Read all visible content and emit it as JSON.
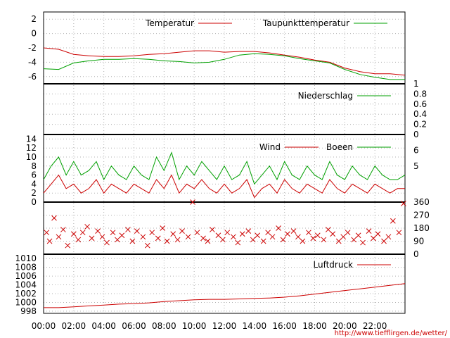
{
  "source_url": "http://www.tiefflirgen.de/wetter/",
  "x_ticks": [
    "00:00",
    "02:00",
    "04:00",
    "06:00",
    "08:00",
    "10:00",
    "12:00",
    "14:00",
    "16:00",
    "18:00",
    "20:00",
    "22:00"
  ],
  "colors": {
    "red": "#cc0000",
    "green": "#00a000"
  },
  "chart_data": [
    {
      "type": "line",
      "panel": "temperature",
      "y_ticks": [
        "2",
        "0",
        "-2",
        "-4",
        "-6"
      ],
      "ylim": [
        -7,
        3
      ],
      "x": [
        0,
        1,
        2,
        3,
        4,
        5,
        6,
        7,
        8,
        9,
        10,
        11,
        12,
        13,
        14,
        15,
        16,
        17,
        18,
        19,
        20,
        21,
        22,
        23,
        24
      ],
      "series": [
        {
          "name": "Temperatur",
          "color": "#cc0000",
          "values": [
            -2.0,
            -2.2,
            -2.9,
            -3.1,
            -3.2,
            -3.2,
            -3.1,
            -2.9,
            -2.8,
            -2.6,
            -2.4,
            -2.4,
            -2.6,
            -2.5,
            -2.5,
            -2.7,
            -3.0,
            -3.3,
            -3.7,
            -4.0,
            -4.8,
            -5.3,
            -5.6,
            -5.6,
            -5.8
          ]
        },
        {
          "name": "Taupunkttemperatur",
          "color": "#00a000",
          "values": [
            -4.9,
            -5.0,
            -4.1,
            -3.8,
            -3.6,
            -3.6,
            -3.5,
            -3.6,
            -3.8,
            -3.9,
            -4.1,
            -4.0,
            -3.6,
            -3.0,
            -2.8,
            -2.9,
            -3.1,
            -3.5,
            -3.8,
            -4.1,
            -5.0,
            -5.7,
            -6.1,
            -6.4,
            -6.4
          ]
        }
      ]
    },
    {
      "type": "line",
      "panel": "precipitation",
      "y_ticks": [
        "1",
        "0.8",
        "0.6",
        "0.4",
        "0.2",
        "0"
      ],
      "ylim": [
        0,
        1
      ],
      "series": [
        {
          "name": "Niederschlag",
          "color": "#00a000",
          "values": []
        }
      ]
    },
    {
      "type": "line",
      "panel": "wind",
      "y_ticks": [
        "14",
        "12",
        "10",
        "8",
        "6",
        "4",
        "2",
        "0"
      ],
      "y2_ticks": [
        "6",
        "5"
      ],
      "ylim": [
        0,
        15
      ],
      "x": [
        0,
        0.5,
        1,
        1.5,
        2,
        2.5,
        3,
        3.5,
        4,
        4.5,
        5,
        5.5,
        6,
        6.5,
        7,
        7.5,
        8,
        8.5,
        9,
        9.5,
        10,
        10.5,
        11,
        11.5,
        12,
        12.5,
        13,
        13.5,
        14,
        14.5,
        15,
        15.5,
        16,
        16.5,
        17,
        17.5,
        18,
        18.5,
        19,
        19.5,
        20,
        20.5,
        21,
        21.5,
        22,
        22.5,
        23,
        23.5,
        24
      ],
      "series": [
        {
          "name": "Wind",
          "color": "#cc0000",
          "values": [
            2,
            4,
            6,
            3,
            4,
            2,
            3,
            5,
            2,
            4,
            3,
            2,
            4,
            3,
            2,
            5,
            3,
            6,
            2,
            4,
            3,
            5,
            3,
            2,
            4,
            2,
            3,
            5,
            1,
            3,
            4,
            2,
            5,
            3,
            2,
            4,
            3,
            2,
            5,
            3,
            2,
            4,
            3,
            2,
            4,
            3,
            2,
            3,
            3
          ]
        },
        {
          "name": "Boeen",
          "color": "#00a000",
          "values": [
            5,
            8,
            10,
            6,
            9,
            6,
            7,
            9,
            5,
            8,
            6,
            5,
            8,
            6,
            5,
            10,
            7,
            11,
            5,
            8,
            6,
            9,
            7,
            5,
            8,
            5,
            6,
            9,
            4,
            6,
            8,
            5,
            9,
            6,
            5,
            8,
            6,
            5,
            9,
            6,
            5,
            8,
            6,
            5,
            8,
            6,
            5,
            5,
            6
          ]
        }
      ]
    },
    {
      "type": "scatter",
      "panel": "wind-direction",
      "y_ticks": [
        "360",
        "270",
        "180",
        "90",
        "0"
      ],
      "ylim": [
        0,
        360
      ],
      "x": [
        0.2,
        0.4,
        0.7,
        1.0,
        1.3,
        1.6,
        2.0,
        2.3,
        2.6,
        2.9,
        3.2,
        3.6,
        3.9,
        4.2,
        4.6,
        4.9,
        5.2,
        5.6,
        5.9,
        6.2,
        6.6,
        6.9,
        7.2,
        7.6,
        7.9,
        8.2,
        8.6,
        8.9,
        9.2,
        9.6,
        9.9,
        10.2,
        10.6,
        10.9,
        11.2,
        11.6,
        11.9,
        12.2,
        12.6,
        12.9,
        13.2,
        13.6,
        13.9,
        14.2,
        14.6,
        14.9,
        15.2,
        15.6,
        15.9,
        16.2,
        16.6,
        16.9,
        17.2,
        17.6,
        17.9,
        18.2,
        18.6,
        18.9,
        19.2,
        19.6,
        19.9,
        20.2,
        20.6,
        20.9,
        21.2,
        21.6,
        21.9,
        22.2,
        22.6,
        22.9,
        23.2,
        23.6,
        23.9
      ],
      "series": [
        {
          "name": "",
          "color": "#cc0000",
          "values": [
            150,
            90,
            250,
            120,
            170,
            60,
            140,
            100,
            150,
            190,
            110,
            160,
            120,
            80,
            150,
            100,
            130,
            170,
            90,
            160,
            120,
            60,
            150,
            110,
            180,
            90,
            140,
            100,
            160,
            120,
            360,
            150,
            110,
            90,
            170,
            130,
            100,
            150,
            120,
            80,
            140,
            160,
            100,
            130,
            90,
            150,
            120,
            180,
            100,
            140,
            160,
            120,
            90,
            150,
            110,
            130,
            100,
            170,
            140,
            90,
            120,
            150,
            100,
            130,
            80,
            160,
            110,
            140,
            90,
            120,
            230,
            150,
            350
          ]
        }
      ]
    },
    {
      "type": "line",
      "panel": "pressure",
      "y_ticks": [
        "1010",
        "1008",
        "1006",
        "1004",
        "1002",
        "1000",
        "998"
      ],
      "ylim": [
        997.5,
        1011
      ],
      "x": [
        0,
        1,
        2,
        3,
        4,
        5,
        6,
        7,
        8,
        9,
        10,
        11,
        12,
        13,
        14,
        15,
        16,
        17,
        18,
        19,
        20,
        21,
        22,
        23,
        24
      ],
      "series": [
        {
          "name": "Luftdruck",
          "color": "#cc0000",
          "values": [
            998.8,
            998.8,
            999.0,
            999.2,
            999.4,
            999.6,
            999.7,
            999.9,
            1000.2,
            1000.4,
            1000.6,
            1000.7,
            1000.7,
            1000.8,
            1000.9,
            1001.0,
            1001.2,
            1001.5,
            1001.9,
            1002.3,
            1002.7,
            1003.1,
            1003.5,
            1003.9,
            1004.3
          ]
        }
      ]
    }
  ]
}
